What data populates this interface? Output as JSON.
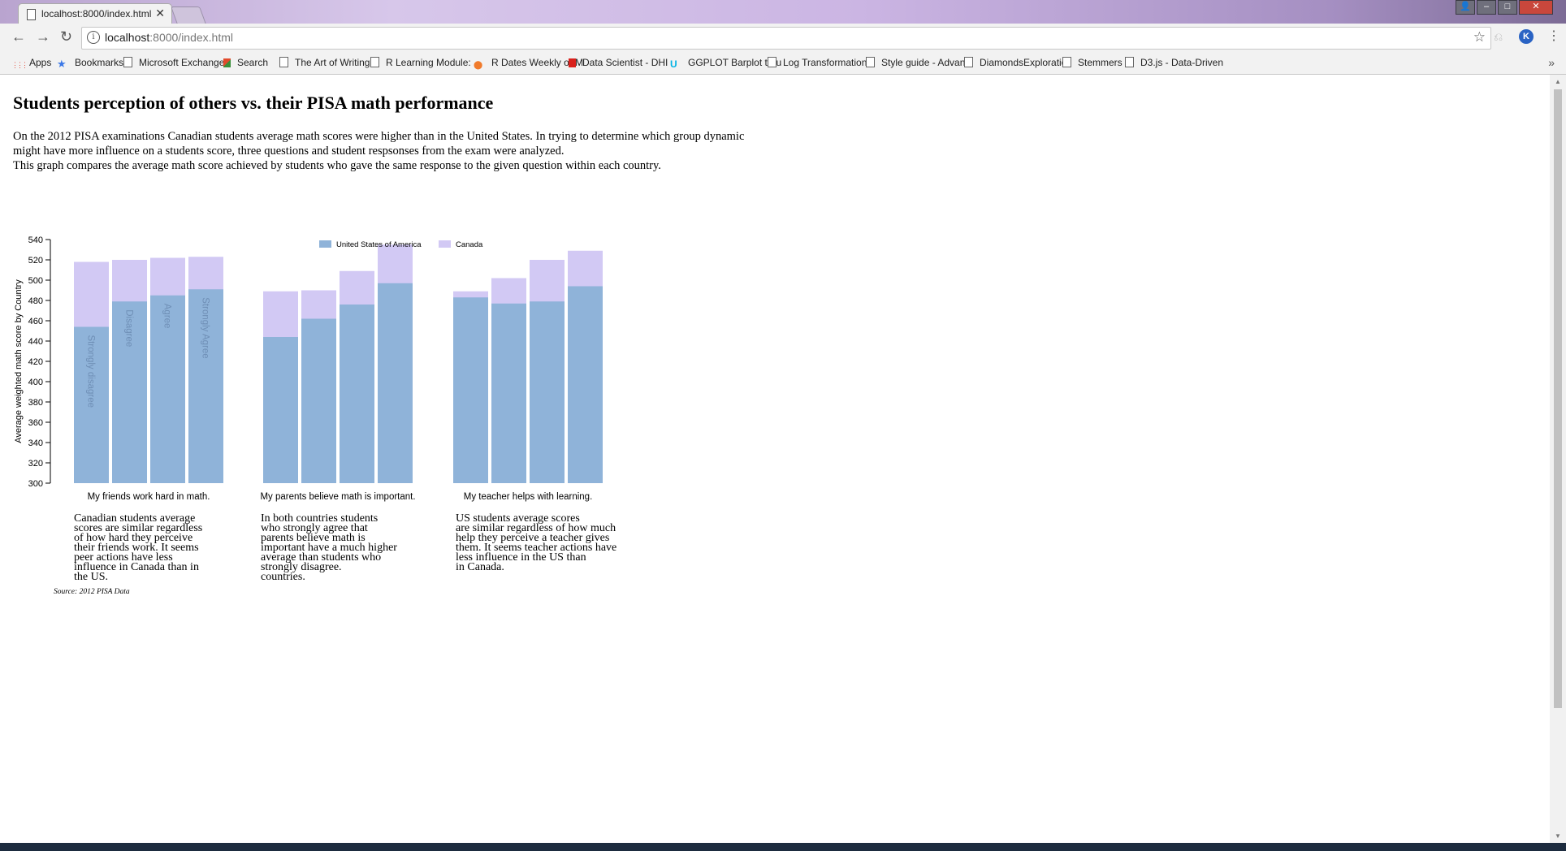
{
  "browser": {
    "tab_title": "localhost:8000/index.html",
    "url_host": "localhost",
    "url_path": ":8000/index.html",
    "avatar_letter": "K",
    "bookmarks": [
      {
        "label": "Apps",
        "icon": "apps-grid-icon"
      },
      {
        "label": "Bookmarks",
        "icon": "star-icon"
      },
      {
        "label": "Microsoft Exchange",
        "icon": "page-icon"
      },
      {
        "label": "Search",
        "icon": "colored-square-icon"
      },
      {
        "label": "The Art of Writing a",
        "icon": "page-icon"
      },
      {
        "label": "R Learning Module:",
        "icon": "page-icon"
      },
      {
        "label": "R Dates Weekly or M",
        "icon": "map-pin-icon"
      },
      {
        "label": "Data Scientist - DHI",
        "icon": "red-d-icon"
      },
      {
        "label": "GGPLOT Barplot trou",
        "icon": "u-logo-icon"
      },
      {
        "label": "Log Transformations",
        "icon": "page-icon"
      },
      {
        "label": "Style guide - Advanc",
        "icon": "page-icon"
      },
      {
        "label": "DiamondsExploratio",
        "icon": "page-icon"
      },
      {
        "label": "Stemmers",
        "icon": "page-icon"
      },
      {
        "label": "D3.js - Data-Driven",
        "icon": "page-icon"
      }
    ]
  },
  "page": {
    "title": "Students perception of others vs. their PISA math performance",
    "intro_line1": "On the 2012 PISA examinations Canadian students average math scores were higher than in the United States. In trying to determine which group dynamic might have more influence on a students score, three questions and student respsonses from the exam were analyzed.",
    "intro_line2": "This graph compares the average math score achieved by students who gave the same response to the given question within each country.",
    "source": "Source: 2012 PISA Data",
    "annotations": [
      [
        "Canadian students average",
        "scores are similar regardless",
        "of how hard they perceive",
        "their friends work. It seems",
        "peer actions have less",
        "influence in Canada than in",
        "the US."
      ],
      [
        "In both countries students",
        "who strongly agree that",
        "parents believe math is",
        "important have a much higher",
        "average than students who",
        "strongly disagree.",
        "countries."
      ],
      [
        "US students average scores",
        "are similar regardless of how much",
        "help they perceive a teacher gives",
        "them. It seems teacher actions have",
        "less influence in the US than",
        "in Canada."
      ]
    ]
  },
  "colors": {
    "usa": "#8fb3d9",
    "canada": "#d2c9f4",
    "response_label": "#6f8fb6"
  },
  "chart_data": {
    "type": "bar",
    "ylabel": "Average weighted math score by Country",
    "ylim": [
      300,
      540
    ],
    "yticks": [
      300,
      320,
      340,
      360,
      380,
      400,
      420,
      440,
      460,
      480,
      500,
      520,
      540
    ],
    "legend": [
      "United States of America",
      "Canada"
    ],
    "legend_position": "top-center",
    "responses": [
      "Strongly disagree",
      "Disagree",
      "Agree",
      "Strongly Agree"
    ],
    "groups": [
      {
        "question": "My friends work hard in math.",
        "usa": [
          454,
          479,
          485,
          491
        ],
        "canada": [
          518,
          520,
          522,
          523
        ]
      },
      {
        "question": "My parents believe math is important.",
        "usa": [
          444,
          462,
          476,
          497
        ],
        "canada": [
          489,
          490,
          509,
          535
        ]
      },
      {
        "question": "My teacher helps with learning.",
        "usa": [
          483,
          477,
          479,
          494
        ],
        "canada": [
          489,
          502,
          520,
          529
        ]
      }
    ]
  }
}
